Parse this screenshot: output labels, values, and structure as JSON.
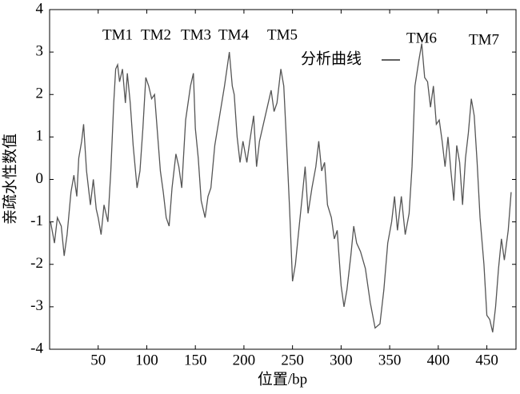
{
  "chart_data": {
    "type": "line",
    "xlabel": "位置/bp",
    "ylabel": "亲疏水性数值",
    "annotations": [
      "TM1",
      "TM2",
      "TM3",
      "TM4",
      "TM5",
      "TM6",
      "TM7"
    ],
    "xlim": [
      0,
      480
    ],
    "ylim": [
      -4,
      4
    ],
    "xticks": [
      50,
      100,
      150,
      200,
      250,
      300,
      350,
      400,
      450
    ],
    "yticks": [
      -4,
      -3,
      -2,
      -1,
      0,
      1,
      2,
      3,
      4
    ],
    "legend": "top-center",
    "series": [
      {
        "name": "分析曲线",
        "color": "#555555",
        "x": [
          1,
          5,
          8,
          12,
          15,
          18,
          22,
          25,
          28,
          30,
          33,
          35,
          38,
          42,
          45,
          48,
          50,
          53,
          56,
          60,
          63,
          66,
          68,
          70,
          72,
          75,
          78,
          80,
          83,
          86,
          90,
          93,
          96,
          99,
          102,
          105,
          108,
          111,
          114,
          117,
          120,
          123,
          126,
          130,
          133,
          136,
          140,
          145,
          148,
          150,
          153,
          156,
          160,
          163,
          166,
          170,
          175,
          180,
          185,
          188,
          190,
          193,
          196,
          199,
          203,
          206,
          210,
          213,
          216,
          220,
          224,
          228,
          231,
          234,
          238,
          241,
          244,
          247,
          250,
          253,
          256,
          260,
          263,
          266,
          270,
          274,
          277,
          280,
          283,
          286,
          290,
          293,
          296,
          300,
          303,
          306,
          310,
          313,
          316,
          320,
          325,
          330,
          335,
          340,
          344,
          348,
          352,
          355,
          358,
          362,
          366,
          370,
          373,
          376,
          380,
          383,
          386,
          389,
          392,
          395,
          398,
          401,
          404,
          407,
          410,
          413,
          416,
          419,
          422,
          425,
          428,
          431,
          434,
          437,
          440,
          443,
          447,
          450,
          453,
          456,
          459,
          462,
          465,
          468,
          472,
          475
        ],
        "values": [
          -1.0,
          -1.5,
          -0.9,
          -1.1,
          -1.8,
          -1.3,
          -0.3,
          0.1,
          -0.4,
          0.5,
          0.9,
          1.3,
          0.2,
          -0.6,
          0.0,
          -0.7,
          -0.9,
          -1.3,
          -0.6,
          -1.0,
          0.2,
          1.8,
          2.6,
          2.7,
          2.3,
          2.6,
          1.8,
          2.5,
          1.8,
          0.8,
          -0.2,
          0.2,
          1.2,
          2.4,
          2.2,
          1.9,
          2.0,
          1.1,
          0.2,
          -0.3,
          -0.9,
          -1.1,
          -0.2,
          0.6,
          0.3,
          -0.2,
          1.4,
          2.2,
          2.5,
          1.2,
          0.5,
          -0.5,
          -0.9,
          -0.4,
          -0.2,
          0.8,
          1.5,
          2.2,
          3.0,
          2.2,
          2.0,
          1.0,
          0.4,
          0.9,
          0.4,
          0.9,
          1.5,
          0.3,
          0.9,
          1.3,
          1.7,
          2.1,
          1.6,
          1.8,
          2.6,
          2.2,
          0.8,
          -0.7,
          -2.4,
          -2.0,
          -1.3,
          -0.4,
          0.3,
          -0.8,
          -0.2,
          0.3,
          0.9,
          0.2,
          0.4,
          -0.6,
          -0.9,
          -1.4,
          -1.2,
          -2.5,
          -3.0,
          -2.6,
          -1.8,
          -1.1,
          -1.5,
          -1.7,
          -2.1,
          -2.9,
          -3.5,
          -3.4,
          -2.6,
          -1.5,
          -1.0,
          -0.4,
          -1.2,
          -0.4,
          -1.3,
          -0.8,
          0.3,
          2.2,
          2.8,
          3.2,
          2.4,
          2.3,
          1.7,
          2.2,
          1.3,
          1.4,
          0.9,
          0.3,
          1.0,
          0.2,
          -0.5,
          0.8,
          0.4,
          -0.6,
          0.5,
          1.1,
          1.9,
          1.5,
          0.4,
          -0.9,
          -2.0,
          -3.2,
          -3.3,
          -3.6,
          -3.0,
          -2.1,
          -1.4,
          -1.9,
          -1.2,
          -0.3
        ]
      }
    ]
  }
}
